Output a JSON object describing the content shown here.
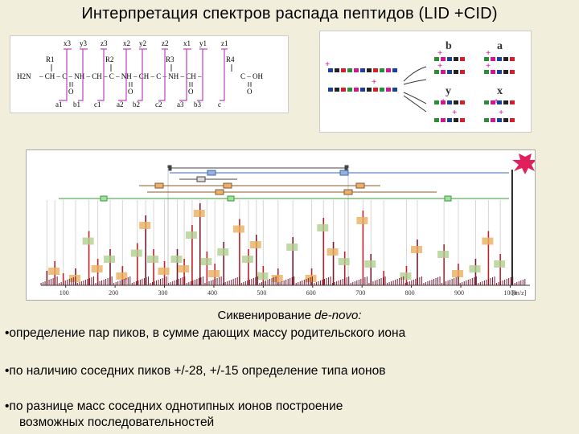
{
  "title": "Интерпретация спектров распада пептидов (LID +CID)",
  "peptide": {
    "top_labels": [
      "x3",
      "y3",
      "z3",
      "x2",
      "y2",
      "z2",
      "x1",
      "y1",
      "z1"
    ],
    "bottom_labels": [
      "a1",
      "b1",
      "c1",
      "a2",
      "b2",
      "c2",
      "a3",
      "b3",
      "c"
    ],
    "r_labels": [
      "R1",
      "R2",
      "R3",
      "R4"
    ],
    "terminal_left": "H2N",
    "terminal_right": "C – OH",
    "o_label": "O"
  },
  "ions": {
    "labels": [
      "b",
      "a",
      "y",
      "x"
    ]
  },
  "spectrum": {
    "x_ticks": [
      "100",
      "200",
      "300",
      "400",
      "500",
      "600",
      "700",
      "800",
      "900",
      "1000"
    ],
    "x_unit": "[m/z]",
    "peaks": [
      {
        "mz": 62,
        "h": 0.12
      },
      {
        "mz": 78,
        "h": 0.2
      },
      {
        "mz": 95,
        "h": 0.1
      },
      {
        "mz": 120,
        "h": 0.14
      },
      {
        "mz": 147,
        "h": 0.45
      },
      {
        "mz": 165,
        "h": 0.22
      },
      {
        "mz": 190,
        "h": 0.3
      },
      {
        "mz": 215,
        "h": 0.16
      },
      {
        "mz": 245,
        "h": 0.35
      },
      {
        "mz": 262,
        "h": 0.58
      },
      {
        "mz": 278,
        "h": 0.3
      },
      {
        "mz": 300,
        "h": 0.2
      },
      {
        "mz": 326,
        "h": 0.3
      },
      {
        "mz": 340,
        "h": 0.22
      },
      {
        "mz": 356,
        "h": 0.5
      },
      {
        "mz": 372,
        "h": 0.68
      },
      {
        "mz": 386,
        "h": 0.28
      },
      {
        "mz": 402,
        "h": 0.18
      },
      {
        "mz": 420,
        "h": 0.36
      },
      {
        "mz": 452,
        "h": 0.55
      },
      {
        "mz": 470,
        "h": 0.3
      },
      {
        "mz": 486,
        "h": 0.42
      },
      {
        "mz": 500,
        "h": 0.16
      },
      {
        "mz": 530,
        "h": 0.14
      },
      {
        "mz": 560,
        "h": 0.4
      },
      {
        "mz": 598,
        "h": 0.14
      },
      {
        "mz": 622,
        "h": 0.56
      },
      {
        "mz": 642,
        "h": 0.36
      },
      {
        "mz": 665,
        "h": 0.28
      },
      {
        "mz": 702,
        "h": 0.62
      },
      {
        "mz": 718,
        "h": 0.26
      },
      {
        "mz": 744,
        "h": 0.12
      },
      {
        "mz": 790,
        "h": 0.16
      },
      {
        "mz": 812,
        "h": 0.38
      },
      {
        "mz": 866,
        "h": 0.34
      },
      {
        "mz": 895,
        "h": 0.18
      },
      {
        "mz": 930,
        "h": 0.22
      },
      {
        "mz": 956,
        "h": 0.45
      },
      {
        "mz": 980,
        "h": 0.26
      },
      {
        "mz": 1004,
        "h": 0.96
      }
    ]
  },
  "caption_normal": "Сиквенирование ",
  "caption_italic": "de-novo:",
  "bullets": [
    "•определение пар пиков, в сумме дающих массу родительского  иона",
    "•по наличию соседних пиков  +/-28,  +/-15 определение типа  ионов",
    "•по разнице масс соседних  однотипных ионов построение"
  ],
  "bullet3_cont": "возможных последовательностей",
  "colors": {
    "peak_red": "#c0202a",
    "peak_dark": "#7a1a30",
    "ion_green": "#2e8b3a",
    "ion_blue": "#1c3f9a",
    "ion_red": "#d1202a",
    "ion_pink": "#d1178f",
    "bracket_magenta": "#c040c0"
  }
}
